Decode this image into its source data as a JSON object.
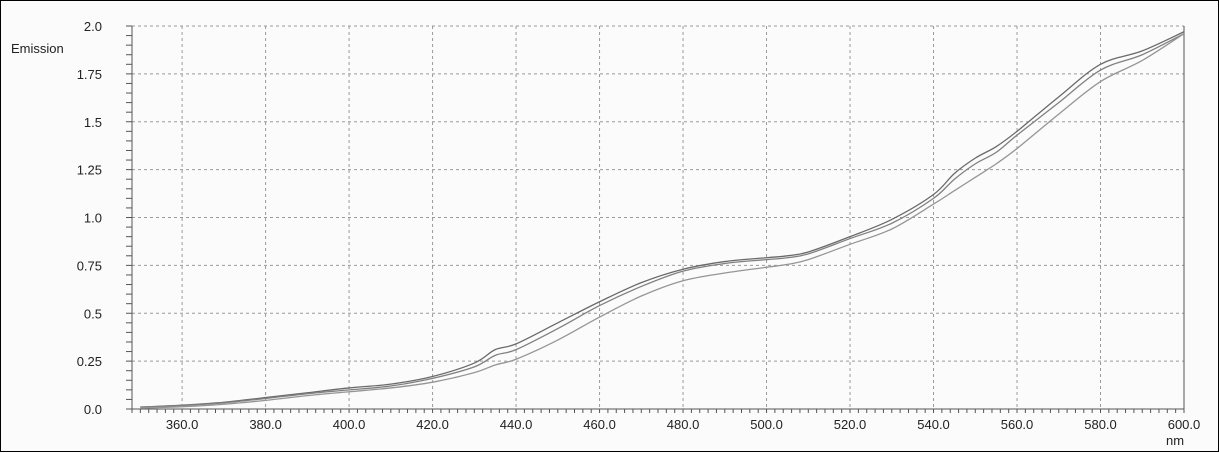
{
  "chart_data": {
    "type": "line",
    "ylabel": "Emission",
    "xlabel": "nm",
    "xlim": [
      348,
      600
    ],
    "ylim": [
      0,
      2.0
    ],
    "x_ticks": [
      "360.0",
      "380.0",
      "400.0",
      "420.0",
      "440.0",
      "460.0",
      "480.0",
      "500.0",
      "520.0",
      "540.0",
      "560.0",
      "580.0",
      "600.0"
    ],
    "y_ticks": [
      "0.0",
      "0.25",
      "0.5",
      "0.75",
      "1.0",
      "1.25",
      "1.5",
      "1.75",
      "2.0"
    ],
    "grid": true,
    "series": [
      {
        "x": [
          350,
          360,
          370,
          380,
          390,
          400,
          410,
          420,
          430,
          435,
          440,
          450,
          460,
          470,
          480,
          490,
          500,
          505,
          510,
          520,
          530,
          540,
          545,
          550,
          555,
          560,
          570,
          580,
          590,
          600
        ],
        "y": [
          0.01,
          0.02,
          0.035,
          0.06,
          0.085,
          0.11,
          0.13,
          0.17,
          0.24,
          0.31,
          0.34,
          0.45,
          0.56,
          0.66,
          0.73,
          0.77,
          0.79,
          0.8,
          0.82,
          0.9,
          0.99,
          1.12,
          1.23,
          1.31,
          1.37,
          1.45,
          1.63,
          1.8,
          1.87,
          1.97
        ]
      },
      {
        "x": [
          350,
          360,
          370,
          380,
          390,
          400,
          410,
          420,
          430,
          435,
          440,
          450,
          460,
          470,
          480,
          490,
          500,
          505,
          510,
          520,
          530,
          540,
          545,
          550,
          555,
          560,
          570,
          580,
          590,
          600
        ],
        "y": [
          0.01,
          0.018,
          0.032,
          0.055,
          0.08,
          0.1,
          0.12,
          0.16,
          0.22,
          0.28,
          0.31,
          0.42,
          0.54,
          0.64,
          0.72,
          0.76,
          0.78,
          0.79,
          0.81,
          0.89,
          0.97,
          1.1,
          1.2,
          1.28,
          1.34,
          1.43,
          1.6,
          1.77,
          1.85,
          1.96
        ]
      },
      {
        "x": [
          350,
          360,
          370,
          380,
          390,
          400,
          410,
          420,
          430,
          435,
          440,
          450,
          460,
          470,
          480,
          490,
          500,
          505,
          510,
          520,
          530,
          540,
          545,
          550,
          555,
          560,
          570,
          580,
          590,
          600
        ],
        "y": [
          0.005,
          0.012,
          0.025,
          0.045,
          0.07,
          0.09,
          0.11,
          0.14,
          0.19,
          0.23,
          0.26,
          0.36,
          0.48,
          0.59,
          0.67,
          0.71,
          0.74,
          0.755,
          0.78,
          0.86,
          0.94,
          1.07,
          1.14,
          1.21,
          1.28,
          1.36,
          1.54,
          1.71,
          1.82,
          1.96
        ]
      }
    ]
  },
  "colors": {
    "grid": "#9a9a9a",
    "axis": "#555555",
    "series": [
      "#6a6a6a",
      "#808080",
      "#959595"
    ]
  }
}
